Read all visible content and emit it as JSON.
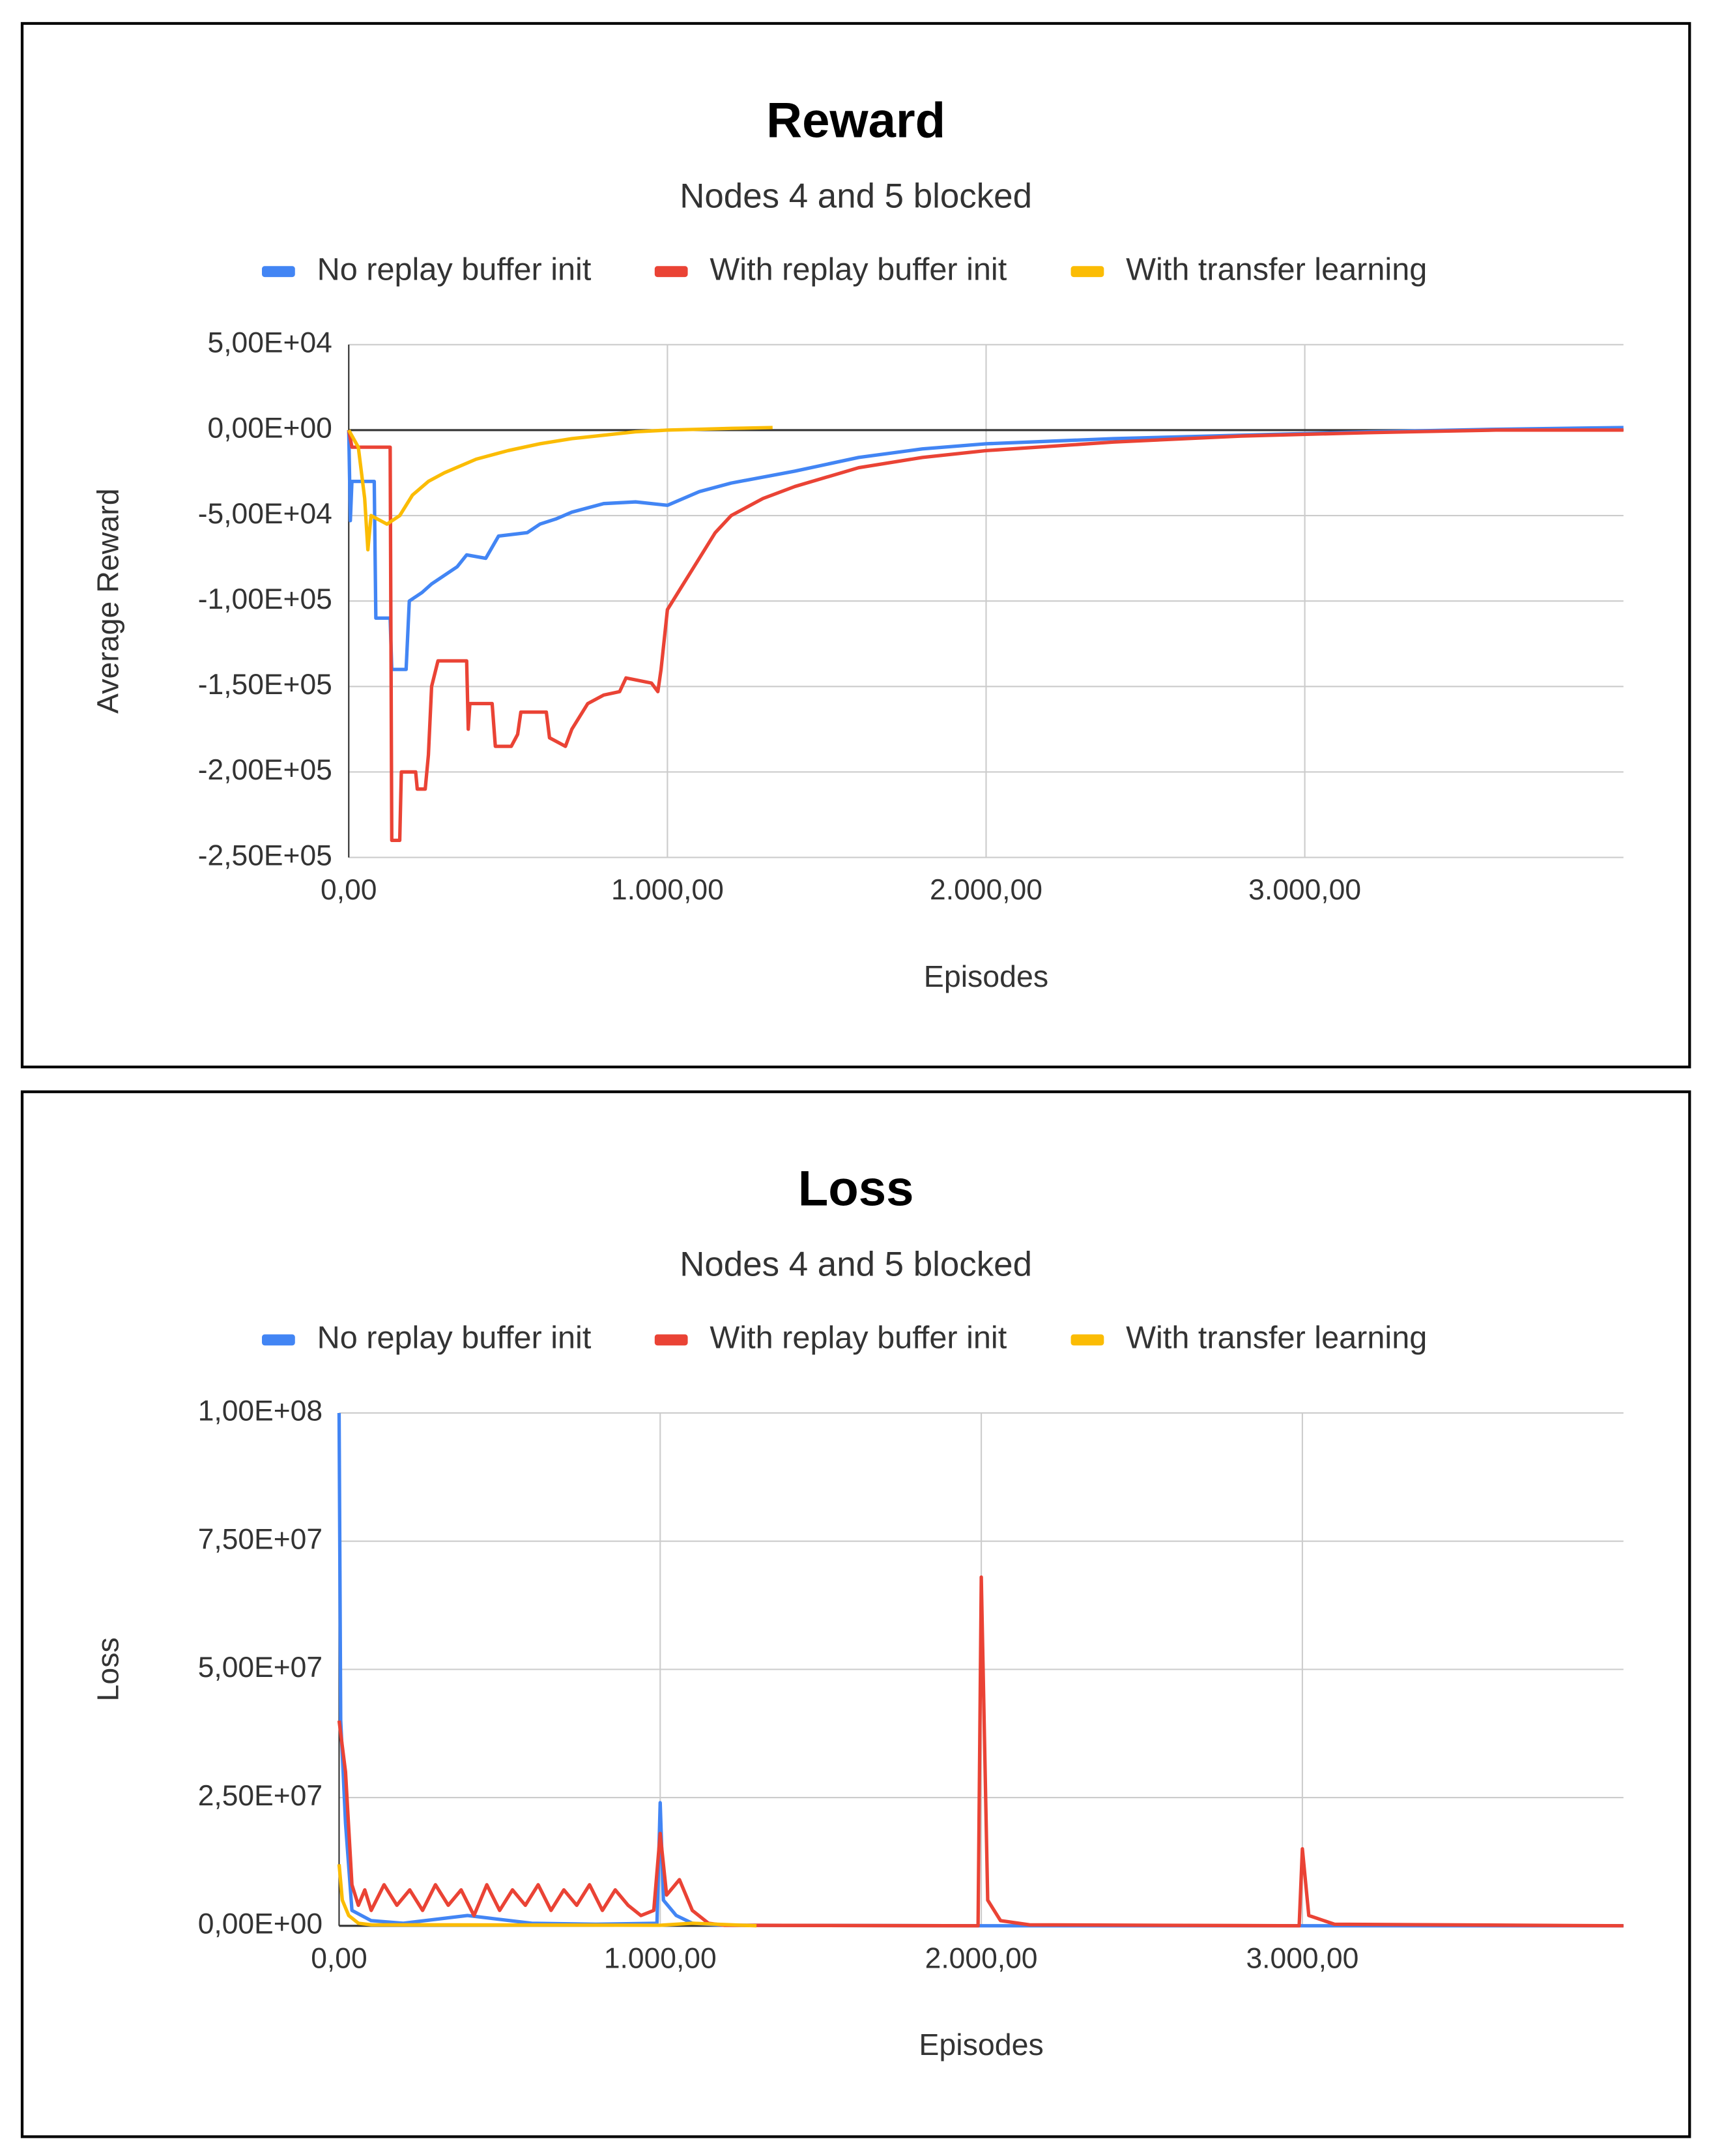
{
  "chart_data": [
    {
      "type": "line",
      "title": "Reward",
      "subtitle": "Nodes 4 and 5 blocked",
      "xlabel": "Episodes",
      "ylabel": "Average Reward",
      "xlim": [
        0,
        4000
      ],
      "ylim": [
        -250000,
        50000
      ],
      "xticks": [
        {
          "value": 0,
          "label": "0,00"
        },
        {
          "value": 1000,
          "label": "1.000,00"
        },
        {
          "value": 2000,
          "label": "2.000,00"
        },
        {
          "value": 3000,
          "label": "3.000,00"
        }
      ],
      "yticks": [
        {
          "value": 50000,
          "label": "5,00E+04"
        },
        {
          "value": 0,
          "label": "0,00E+00"
        },
        {
          "value": -50000,
          "label": "-5,00E+04"
        },
        {
          "value": -100000,
          "label": "-1,00E+05"
        },
        {
          "value": -150000,
          "label": "-1,50E+05"
        },
        {
          "value": -200000,
          "label": "-2,00E+05"
        },
        {
          "value": -250000,
          "label": "-2,50E+05"
        }
      ],
      "grid": true,
      "legend": "top",
      "series": [
        {
          "name": "No replay buffer init",
          "color": "#4285f4",
          "x": [
            0,
            5,
            10,
            80,
            85,
            130,
            135,
            180,
            190,
            230,
            260,
            300,
            340,
            370,
            430,
            470,
            560,
            600,
            650,
            700,
            800,
            900,
            1000,
            1100,
            1200,
            1400,
            1600,
            1800,
            2000,
            2400,
            2800,
            3200,
            3600,
            4000
          ],
          "values": [
            0,
            -53000,
            -30000,
            -30000,
            -110000,
            -110000,
            -140000,
            -140000,
            -100000,
            -95000,
            -90000,
            -85000,
            -80000,
            -73000,
            -75000,
            -62000,
            -60000,
            -55000,
            -52000,
            -48000,
            -43000,
            -42000,
            -44000,
            -36000,
            -31000,
            -24000,
            -16000,
            -11000,
            -8000,
            -5000,
            -3000,
            -1000,
            500,
            1500
          ]
        },
        {
          "name": "With replay buffer init",
          "color": "#ea4335",
          "x": [
            0,
            10,
            130,
            135,
            160,
            165,
            210,
            215,
            240,
            250,
            260,
            280,
            370,
            375,
            380,
            450,
            460,
            510,
            530,
            540,
            620,
            630,
            680,
            700,
            750,
            800,
            850,
            870,
            950,
            970,
            980,
            1000,
            1050,
            1100,
            1150,
            1200,
            1300,
            1400,
            1600,
            1800,
            2000,
            2400,
            2800,
            3200,
            3600,
            4000
          ],
          "values": [
            0,
            -10000,
            -10000,
            -240000,
            -240000,
            -200000,
            -200000,
            -210000,
            -210000,
            -190000,
            -150000,
            -135000,
            -135000,
            -175000,
            -160000,
            -160000,
            -185000,
            -185000,
            -178000,
            -165000,
            -165000,
            -180000,
            -185000,
            -175000,
            -160000,
            -155000,
            -153000,
            -145000,
            -148000,
            -153000,
            -140000,
            -105000,
            -90000,
            -75000,
            -60000,
            -50000,
            -40000,
            -33000,
            -22000,
            -16000,
            -12000,
            -7000,
            -3500,
            -1500,
            0,
            0
          ]
        },
        {
          "name": "With transfer learning",
          "color": "#fbbc04",
          "x": [
            0,
            30,
            50,
            60,
            70,
            120,
            160,
            200,
            250,
            300,
            400,
            500,
            600,
            700,
            800,
            900,
            1000,
            1100,
            1200,
            1330
          ],
          "values": [
            0,
            -10000,
            -40000,
            -70000,
            -50000,
            -55000,
            -50000,
            -38000,
            -30000,
            -25000,
            -17000,
            -12000,
            -8000,
            -5000,
            -3000,
            -1000,
            0,
            500,
            1000,
            1500
          ]
        }
      ]
    },
    {
      "type": "line",
      "title": "Loss",
      "subtitle": "Nodes 4 and 5 blocked",
      "xlabel": "Episodes",
      "ylabel": "Loss",
      "xlim": [
        0,
        4000
      ],
      "ylim": [
        0,
        100000000
      ],
      "xticks": [
        {
          "value": 0,
          "label": "0,00"
        },
        {
          "value": 1000,
          "label": "1.000,00"
        },
        {
          "value": 2000,
          "label": "2.000,00"
        },
        {
          "value": 3000,
          "label": "3.000,00"
        }
      ],
      "yticks": [
        {
          "value": 100000000,
          "label": "1,00E+08"
        },
        {
          "value": 75000000,
          "label": "7,50E+07"
        },
        {
          "value": 50000000,
          "label": "5,00E+07"
        },
        {
          "value": 25000000,
          "label": "2,50E+07"
        },
        {
          "value": 0,
          "label": "0,00E+00"
        }
      ],
      "grid": true,
      "legend": "top",
      "series": [
        {
          "name": "No replay buffer init",
          "color": "#4285f4",
          "x": [
            0,
            5,
            20,
            40,
            100,
            200,
            400,
            600,
            800,
            990,
            1000,
            1010,
            1050,
            1100,
            1200,
            2000,
            4000
          ],
          "values": [
            100000000,
            40000000,
            20000000,
            3000000,
            1000000,
            500000,
            2000000,
            500000,
            300000,
            500000,
            24000000,
            5000000,
            2000000,
            500000,
            100000,
            0,
            0
          ]
        },
        {
          "name": "With replay buffer init",
          "color": "#ea4335",
          "x": [
            0,
            20,
            40,
            60,
            80,
            100,
            140,
            180,
            220,
            260,
            300,
            340,
            380,
            420,
            460,
            500,
            540,
            580,
            620,
            660,
            700,
            740,
            780,
            820,
            860,
            900,
            940,
            980,
            1000,
            1020,
            1060,
            1100,
            1150,
            1200,
            1990,
            2000,
            2020,
            2060,
            2150,
            2990,
            3000,
            3020,
            3100,
            4000
          ],
          "values": [
            40000000,
            30000000,
            8000000,
            4000000,
            7000000,
            3000000,
            8000000,
            4000000,
            7000000,
            3000000,
            8000000,
            4000000,
            7000000,
            2000000,
            8000000,
            3000000,
            7000000,
            4000000,
            8000000,
            3000000,
            7000000,
            4000000,
            8000000,
            3000000,
            7000000,
            4000000,
            2000000,
            3000000,
            18000000,
            6000000,
            9000000,
            3000000,
            500000,
            100000,
            0,
            68000000,
            5000000,
            1000000,
            200000,
            0,
            15000000,
            2000000,
            300000,
            0
          ]
        },
        {
          "name": "With transfer learning",
          "color": "#fbbc04",
          "x": [
            0,
            10,
            30,
            60,
            100,
            1000,
            1100,
            1300
          ],
          "values": [
            12000000,
            5000000,
            2000000,
            500000,
            200000,
            100000,
            500000,
            0
          ]
        }
      ]
    }
  ]
}
